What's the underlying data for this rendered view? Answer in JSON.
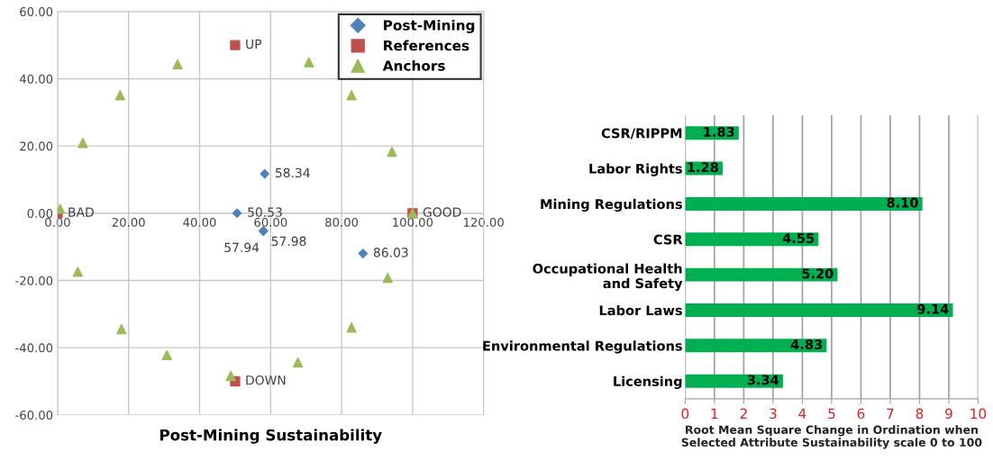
{
  "chart_data": [
    {
      "type": "scatter",
      "xlabel": "Post-Mining Sustainability",
      "xlim": [
        0,
        120
      ],
      "ylim": [
        -60,
        60
      ],
      "xticks": [
        {
          "value": 0,
          "label": "0.00"
        },
        {
          "value": 20,
          "label": "20.00"
        },
        {
          "value": 40,
          "label": "40.00"
        },
        {
          "value": 60,
          "label": "60.00"
        },
        {
          "value": 80,
          "label": "80.00"
        },
        {
          "value": 100,
          "label": "100.00"
        },
        {
          "value": 120,
          "label": "120.00"
        }
      ],
      "yticks": [
        {
          "value": -60,
          "label": "-60.00"
        },
        {
          "value": -40,
          "label": "-40.00"
        },
        {
          "value": -20,
          "label": "-20.00"
        },
        {
          "value": 0,
          "label": "0.00"
        },
        {
          "value": 20,
          "label": "20.00"
        },
        {
          "value": 40,
          "label": "40.00"
        },
        {
          "value": 60,
          "label": "60.00"
        }
      ],
      "grid": true,
      "legend": "top right",
      "annotations": [
        {
          "text": "50.53",
          "x": 50.53,
          "y": 0
        },
        {
          "text": "58.34",
          "x": 58.34,
          "y": 11.7
        },
        {
          "text": "57.94",
          "x": 57.94,
          "y": -5.3
        },
        {
          "text": "57.98",
          "x": 57.98,
          "y": -5.3
        },
        {
          "text": "86.03",
          "x": 86.03,
          "y": -12.0
        },
        {
          "text": "BAD",
          "x": 0,
          "y": 0
        },
        {
          "text": "GOOD",
          "x": 100,
          "y": 0
        },
        {
          "text": "UP",
          "x": 50,
          "y": 50
        },
        {
          "text": "DOWN",
          "x": 50,
          "y": -50
        }
      ],
      "series": [
        {
          "name": "Post-Mining",
          "color": "#4f81bd",
          "marker": "diamond",
          "x": [
            50.53,
            58.34,
            57.94,
            57.98,
            86.03
          ],
          "values": [
            0,
            11.7,
            -5.3,
            -5.3,
            -12.0
          ]
        },
        {
          "name": "References",
          "color": "#c0504d",
          "marker": "square",
          "x": [
            0,
            100,
            50,
            50
          ],
          "values": [
            0,
            0,
            50,
            -50
          ]
        },
        {
          "name": "Anchors",
          "color": "#9bbb59",
          "marker": "triangle",
          "x": [
            0.7,
            7.1,
            17.6,
            33.8,
            70.8,
            82.8,
            94.2,
            100,
            93.0,
            82.8,
            67.7,
            48.8,
            30.8,
            18.0,
            5.7
          ],
          "values": [
            1.3,
            20.9,
            35.1,
            44.3,
            44.9,
            35.1,
            18.3,
            0,
            -19.2,
            -34.0,
            -44.4,
            -48.4,
            -42.2,
            -34.5,
            -17.4
          ]
        }
      ]
    },
    {
      "type": "bar",
      "orientation": "horizontal",
      "xlabel": "Root Mean Square Change in Ordination when\nSelected Attribute Sustainability scale 0 to 100",
      "categories": [
        "CSR/RIPPM",
        "Labor Rights",
        "Mining Regulations",
        "CSR",
        "Occupational Health\nand Safety",
        "Labor Laws",
        "Environmental Regulations",
        "Licensing"
      ],
      "values": [
        1.83,
        1.28,
        8.1,
        4.55,
        5.2,
        9.14,
        4.83,
        3.34
      ],
      "value_labels": [
        "1.83",
        "1.28",
        "8.10",
        "4.55",
        "5.20",
        "9.14",
        "4.83",
        "3.34"
      ],
      "color": "#00b050",
      "xlim": [
        0,
        10
      ],
      "xticks": [
        0,
        1,
        2,
        3,
        4,
        5,
        6,
        7,
        8,
        9,
        10
      ],
      "grid": "x"
    }
  ]
}
